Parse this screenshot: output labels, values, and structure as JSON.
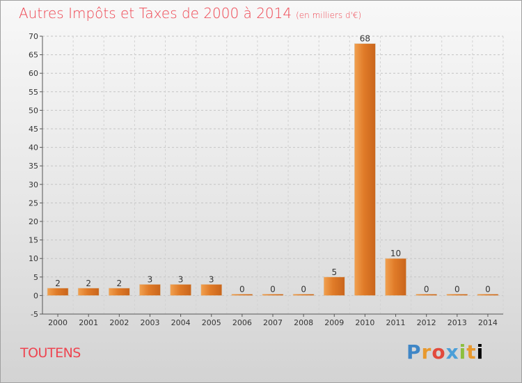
{
  "chart_data": {
    "type": "bar",
    "title": "Autres Impôts et Taxes de 2000 à 2014",
    "subtitle": "(en milliers d'€)",
    "categories": [
      "2000",
      "2001",
      "2002",
      "2003",
      "2004",
      "2005",
      "2006",
      "2007",
      "2008",
      "2009",
      "2010",
      "2011",
      "2012",
      "2013",
      "2014"
    ],
    "values": [
      2,
      2,
      2,
      3,
      3,
      3,
      0,
      0,
      0,
      5,
      68,
      10,
      0,
      0,
      0
    ],
    "ylim": [
      -5,
      70
    ],
    "yticks": [
      -5,
      0,
      5,
      10,
      15,
      20,
      25,
      30,
      35,
      40,
      45,
      50,
      55,
      60,
      65,
      70
    ],
    "grid": true,
    "bar_color": "#e8883a"
  },
  "place": "TOUTENS",
  "logo": [
    "P",
    "r",
    "o",
    "x",
    "i",
    "t",
    "i"
  ]
}
